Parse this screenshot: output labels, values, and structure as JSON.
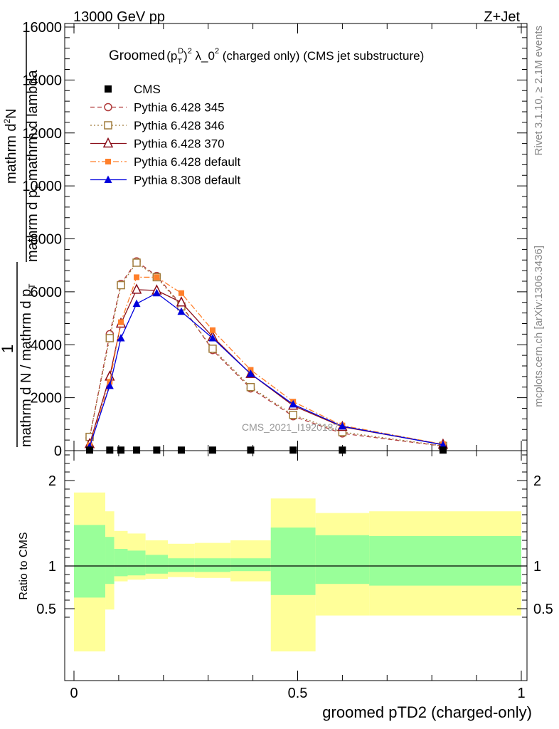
{
  "header": {
    "energy_label": "13000 GeV pp",
    "process_label": "Z+Jet"
  },
  "side_labels": {
    "rivet": "Rivet 3.1.10, ≥ 2.1M events",
    "mcplots": "mcplots.cern.ch [arXiv:1306.3436]"
  },
  "watermark": "CMS_2021_I1920187",
  "chart_data": [
    {
      "type": "line",
      "title": "Groomed (p_T^D)^2 λ_0^2  (charged only) (CMS jet substructure)",
      "title_parts": {
        "prefix": "Groomed",
        "base": "(p",
        "sub": "T",
        "sup_inner": "D",
        "close": ")",
        "sup_outer": "2",
        "lambda": " λ_0",
        "lambda_sup": "2",
        "suffix": "  (charged only) (CMS jet substructure)"
      },
      "ylabel_parts": {
        "num_1": "mathrm d",
        "num_1_sup": "2",
        "num_1_tail": "N",
        "den_1": "mathrm d p",
        "den_1_sub": "T",
        "den_1_tail": " mathrm d lambda",
        "frac_1": "1",
        "num_2": "mathrm d N / mathrm d p",
        "num_2_sub": "T"
      },
      "yticks": [
        0,
        2000,
        4000,
        6000,
        8000,
        10000,
        12000,
        14000,
        16000
      ],
      "ylim": [
        0,
        16000
      ],
      "xlim": [
        -0.02,
        1.0
      ],
      "legend_position": "top-left",
      "x": [
        0.035,
        0.08,
        0.105,
        0.14,
        0.185,
        0.24,
        0.31,
        0.395,
        0.49,
        0.6,
        0.825
      ],
      "series": [
        {
          "name": "CMS",
          "style": "data",
          "color": "#000000",
          "marker": "square",
          "values": [
            20,
            20,
            20,
            20,
            20,
            20,
            20,
            20,
            20,
            20,
            20
          ]
        },
        {
          "name": "Pythia 6.428 345",
          "color": "#b03a3a",
          "dash": "6,4",
          "marker": "circle-open",
          "values": [
            480,
            4400,
            6300,
            7150,
            6600,
            5500,
            3800,
            2350,
            1300,
            650,
            170
          ]
        },
        {
          "name": "Pythia 6.428 346",
          "color": "#a07c3c",
          "dash": "2,3",
          "marker": "square-open",
          "values": [
            520,
            4250,
            6250,
            7100,
            6550,
            5450,
            3850,
            2400,
            1350,
            700,
            180
          ]
        },
        {
          "name": "Pythia 6.428 370",
          "color": "#8b0f1a",
          "dash": "",
          "marker": "triangle-open",
          "values": [
            250,
            2800,
            4800,
            6080,
            6050,
            5600,
            4300,
            2900,
            1700,
            900,
            230
          ]
        },
        {
          "name": "Pythia 6.428 default",
          "color": "#ff7f2a",
          "dash": "8,3,2,3",
          "marker": "square-filled",
          "values": [
            200,
            2600,
            4850,
            6550,
            6550,
            5950,
            4550,
            3050,
            1850,
            950,
            240
          ]
        },
        {
          "name": "Pythia 8.308 default",
          "color": "#0000dd",
          "dash": "",
          "marker": "triangle-filled",
          "values": [
            150,
            2450,
            4250,
            5550,
            5950,
            5250,
            4250,
            2900,
            1750,
            920,
            220
          ]
        }
      ]
    },
    {
      "type": "area",
      "ylabel": "Ratio to CMS",
      "xlabel": "groomed pTD2 (charged-only)",
      "xticks": [
        "0",
        "0.5",
        "1"
      ],
      "xtick_values": [
        0,
        0.5,
        1
      ],
      "yticks": [
        "0.5",
        "1",
        "2"
      ],
      "ytick_values": [
        0.5,
        1,
        2
      ],
      "ylim": [
        0.35,
        2.35
      ],
      "xlim": [
        -0.02,
        1.0
      ],
      "bins": [
        {
          "x0": 0.0,
          "x1": 0.07,
          "inner": [
            0.63,
            1.48
          ],
          "outer": [
            0.0,
            1.86
          ]
        },
        {
          "x0": 0.07,
          "x1": 0.09,
          "inner": [
            0.79,
            1.34
          ],
          "outer": [
            0.49,
            1.64
          ]
        },
        {
          "x0": 0.09,
          "x1": 0.12,
          "inner": [
            0.88,
            1.2
          ],
          "outer": [
            0.82,
            1.41
          ]
        },
        {
          "x0": 0.12,
          "x1": 0.16,
          "inner": [
            0.89,
            1.18
          ],
          "outer": [
            0.84,
            1.38
          ]
        },
        {
          "x0": 0.16,
          "x1": 0.21,
          "inner": [
            0.91,
            1.13
          ],
          "outer": [
            0.85,
            1.3
          ]
        },
        {
          "x0": 0.21,
          "x1": 0.27,
          "inner": [
            0.93,
            1.09
          ],
          "outer": [
            0.87,
            1.26
          ]
        },
        {
          "x0": 0.27,
          "x1": 0.35,
          "inner": [
            0.93,
            1.09
          ],
          "outer": [
            0.86,
            1.27
          ]
        },
        {
          "x0": 0.35,
          "x1": 0.44,
          "inner": [
            0.94,
            1.09
          ],
          "outer": [
            0.82,
            1.3
          ]
        },
        {
          "x0": 0.44,
          "x1": 0.54,
          "inner": [
            0.66,
            1.45
          ],
          "outer": [
            0.0,
            1.79
          ]
        },
        {
          "x0": 0.54,
          "x1": 0.66,
          "inner": [
            0.79,
            1.36
          ],
          "outer": [
            0.42,
            1.62
          ]
        },
        {
          "x0": 0.66,
          "x1": 1.0,
          "inner": [
            0.77,
            1.35
          ],
          "outer": [
            0.42,
            1.64
          ]
        }
      ],
      "colors": {
        "inner": "#99ff99",
        "outer": "#ffff99",
        "reference": "#000000"
      }
    }
  ]
}
